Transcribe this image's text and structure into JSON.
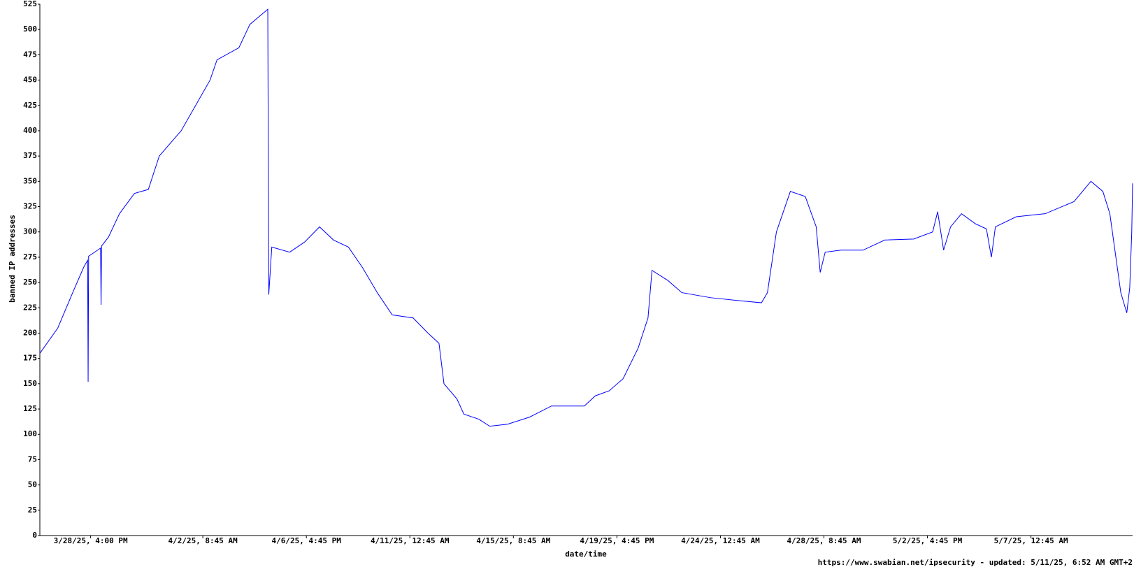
{
  "chart_data": {
    "type": "line",
    "y_label": "banned IP addresses",
    "x_label": "date/time",
    "footer": "https://www.swabian.net/ipsecurity - updated: 5/11/25, 6:52 AM GMT+2",
    "xlim": [
      "3/26/25, 1:00 PM",
      "5/11/25, 6:52 AM"
    ],
    "xticks": [
      "3/28/25, 4:00 PM",
      "4/2/25, 8:45 AM",
      "4/6/25, 4:45 PM",
      "4/11/25, 12:45 AM",
      "4/15/25, 8:45 AM",
      "4/19/25, 4:45 PM",
      "4/24/25, 12:45 AM",
      "4/28/25, 8:45 AM",
      "5/2/25, 4:45 PM",
      "5/7/25, 12:45 AM"
    ],
    "ylim": [
      0,
      525
    ],
    "yticks": [
      0,
      25,
      50,
      75,
      100,
      125,
      150,
      175,
      200,
      225,
      250,
      275,
      300,
      325,
      350,
      375,
      400,
      425,
      450,
      475,
      500,
      525
    ],
    "series": [
      {
        "name": "banned IP addresses",
        "color": "#0000ff",
        "x": [
          "3/26/25, 1:00 PM",
          "3/27/25, 7:00 AM",
          "3/27/25, 10:00 PM",
          "3/28/25, 9:00 AM",
          "3/28/25, 1:00 PM",
          "3/28/25, 1:30 PM",
          "3/28/25, 2:00 PM",
          "3/29/25, 2:00 AM",
          "3/29/25, 2:30 AM",
          "3/29/25, 3:00 AM",
          "3/29/25, 10:00 AM",
          "3/29/25, 9:00 PM",
          "3/30/25, 12:00 PM",
          "3/31/25, 2:00 AM",
          "3/31/25, 1:00 PM",
          "4/1/25, 11:00 AM",
          "4/2/25, 4:00 PM",
          "4/2/25, 11:00 PM",
          "4/3/25, 9:00 PM",
          "4/4/25, 8:00 AM",
          "4/5/25, 2:00 AM",
          "4/5/25, 3:00 AM",
          "4/5/25, 6:00 AM",
          "4/6/25, 12:00 AM",
          "4/6/25, 3:00 PM",
          "4/7/25, 6:00 AM",
          "4/7/25, 8:00 PM",
          "4/8/25, 11:00 AM",
          "4/9/25, 1:00 AM",
          "4/9/25, 4:00 PM",
          "4/10/25, 7:00 AM",
          "4/11/25, 4:00 AM",
          "4/11/25, 7:00 PM",
          "4/12/25, 6:00 AM",
          "4/12/25, 11:00 AM",
          "4/13/25, 12:00 AM",
          "4/13/25, 7:00 AM",
          "4/13/25, 10:00 PM",
          "4/14/25, 9:00 AM",
          "4/15/25, 3:00 AM",
          "4/16/25, 1:00 AM",
          "4/16/25, 11:00 PM",
          "4/18/25, 8:00 AM",
          "4/18/25, 7:00 PM",
          "4/19/25, 9:00 AM",
          "4/19/25, 11:00 PM",
          "4/20/25, 2:00 PM",
          "4/21/25, 12:00 AM",
          "4/21/25, 4:00 AM",
          "4/21/25, 8:00 PM",
          "4/22/25, 10:00 AM",
          "4/23/25, 3:00 PM",
          "4/24/25, 8:00 PM",
          "4/25/25, 6:00 PM",
          "4/26/25, 12:00 AM",
          "4/26/25, 9:00 AM",
          "4/26/25, 11:00 PM",
          "4/27/25, 2:00 PM",
          "4/28/25, 1:00 AM",
          "4/28/25, 5:00 AM",
          "4/28/25, 10:00 AM",
          "4/29/25, 2:00 AM",
          "4/30/25, 12:00 AM",
          "4/30/25, 10:00 PM",
          "5/2/25, 3:00 AM",
          "5/2/25, 10:00 PM",
          "5/3/25, 3:00 AM",
          "5/3/25, 9:00 AM",
          "5/3/25, 4:00 PM",
          "5/4/25, 3:00 AM",
          "5/4/25, 5:00 PM",
          "5/5/25, 4:00 AM",
          "5/5/25, 9:00 AM",
          "5/5/25, 1:00 PM",
          "5/6/25, 10:00 AM",
          "5/7/25, 3:00 PM",
          "5/8/25, 8:00 PM",
          "5/9/25, 1:00 PM",
          "5/10/25, 1:00 AM",
          "5/10/25, 8:00 AM",
          "5/10/25, 7:00 PM",
          "5/11/25, 1:00 AM",
          "5/11/25, 4:00 AM",
          "5/11/25, 6:00 AM",
          "5/11/25, 6:52 AM"
        ],
        "values": [
          180,
          205,
          240,
          265,
          272,
          152,
          276,
          284,
          228,
          286,
          295,
          318,
          338,
          342,
          375,
          400,
          450,
          470,
          482,
          505,
          520,
          238,
          285,
          280,
          290,
          305,
          292,
          285,
          265,
          240,
          218,
          215,
          200,
          190,
          150,
          135,
          120,
          115,
          108,
          110,
          117,
          128,
          128,
          138,
          143,
          155,
          185,
          215,
          262,
          252,
          240,
          235,
          232,
          230,
          240,
          300,
          340,
          335,
          305,
          260,
          280,
          282,
          282,
          292,
          293,
          300,
          320,
          282,
          305,
          318,
          308,
          303,
          275,
          305,
          315,
          318,
          330,
          350,
          340,
          318,
          240,
          220,
          245,
          300,
          348
        ]
      }
    ]
  }
}
